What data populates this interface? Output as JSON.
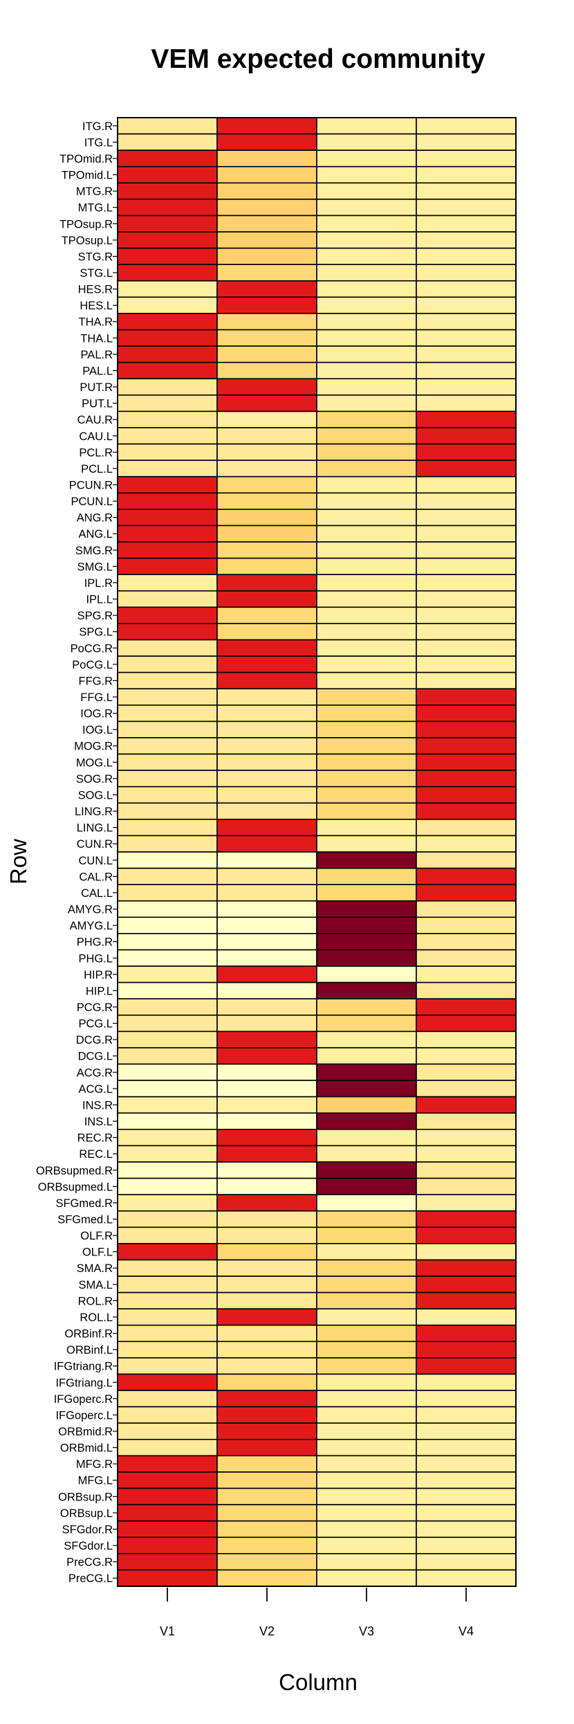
{
  "chart_data": {
    "type": "heatmap",
    "title": "VEM expected community",
    "xlabel": "Column",
    "ylabel": "Row",
    "columns": [
      "V1",
      "V2",
      "V3",
      "V4"
    ],
    "rows": [
      "ITG.R",
      "ITG.L",
      "TPOmid.R",
      "TPOmid.L",
      "MTG.R",
      "MTG.L",
      "TPOsup.R",
      "TPOsup.L",
      "STG.R",
      "STG.L",
      "HES.R",
      "HES.L",
      "THA.R",
      "THA.L",
      "PAL.R",
      "PAL.L",
      "PUT.R",
      "PUT.L",
      "CAU.R",
      "CAU.L",
      "PCL.R",
      "PCL.L",
      "PCUN.R",
      "PCUN.L",
      "ANG.R",
      "ANG.L",
      "SMG.R",
      "SMG.L",
      "IPL.R",
      "IPL.L",
      "SPG.R",
      "SPG.L",
      "PoCG.R",
      "PoCG.L",
      "FFG.R",
      "FFG.L",
      "IOG.R",
      "IOG.L",
      "MOG.R",
      "MOG.L",
      "SOG.R",
      "SOG.L",
      "LING.R",
      "LING.L",
      "CUN.R",
      "CUN.L",
      "CAL.R",
      "CAL.L",
      "AMYG.R",
      "AMYG.L",
      "PHG.R",
      "PHG.L",
      "HIP.R",
      "HIP.L",
      "PCG.R",
      "PCG.L",
      "DCG.R",
      "DCG.L",
      "ACG.R",
      "ACG.L",
      "INS.R",
      "INS.L",
      "REC.R",
      "REC.L",
      "ORBsupmed.R",
      "ORBsupmed.L",
      "SFGmed.R",
      "SFGmed.L",
      "OLF.R",
      "OLF.L",
      "SMA.R",
      "SMA.L",
      "ROL.R",
      "ROL.L",
      "ORBinf.R",
      "ORBinf.L",
      "IFGtriang.R",
      "IFGtriang.L",
      "IFGoperc.R",
      "IFGoperc.L",
      "ORBmid.R",
      "ORBmid.L",
      "MFG.R",
      "MFG.L",
      "ORBsup.R",
      "ORBsup.L",
      "SFGdor.R",
      "SFGdor.L",
      "PreCG.R",
      "PreCG.L"
    ],
    "values": [
      [
        3,
        8,
        2,
        2
      ],
      [
        3,
        8,
        2,
        2
      ],
      [
        8,
        5,
        2,
        2
      ],
      [
        8,
        5,
        2,
        2
      ],
      [
        8,
        5,
        2,
        2
      ],
      [
        8,
        5,
        2,
        2
      ],
      [
        8,
        5,
        2,
        2
      ],
      [
        8,
        5,
        2,
        2
      ],
      [
        8,
        5,
        2,
        2
      ],
      [
        8,
        4,
        2,
        2
      ],
      [
        2,
        8,
        2,
        2
      ],
      [
        2,
        8,
        2,
        2
      ],
      [
        8,
        4,
        2,
        2
      ],
      [
        8,
        4,
        2,
        2
      ],
      [
        8,
        4,
        2,
        2
      ],
      [
        8,
        4,
        2,
        2
      ],
      [
        3,
        8,
        2,
        2
      ],
      [
        3,
        8,
        2,
        2
      ],
      [
        3,
        2,
        4,
        8
      ],
      [
        3,
        3,
        4,
        8
      ],
      [
        3,
        3,
        4,
        8
      ],
      [
        3,
        3,
        4,
        8
      ],
      [
        8,
        4,
        2,
        2
      ],
      [
        8,
        4,
        2,
        2
      ],
      [
        8,
        5,
        2,
        2
      ],
      [
        8,
        5,
        2,
        2
      ],
      [
        8,
        4,
        2,
        2
      ],
      [
        8,
        4,
        2,
        2
      ],
      [
        2,
        8,
        2,
        2
      ],
      [
        3,
        8,
        2,
        2
      ],
      [
        8,
        4,
        2,
        2
      ],
      [
        8,
        4,
        2,
        2
      ],
      [
        3,
        8,
        2,
        2
      ],
      [
        3,
        8,
        2,
        2
      ],
      [
        3,
        8,
        2,
        2
      ],
      [
        3,
        3,
        4,
        8
      ],
      [
        3,
        3,
        4,
        8
      ],
      [
        3,
        3,
        4,
        8
      ],
      [
        3,
        3,
        4,
        8
      ],
      [
        3,
        3,
        4,
        8
      ],
      [
        3,
        3,
        4,
        8
      ],
      [
        3,
        3,
        4,
        8
      ],
      [
        3,
        3,
        4,
        8
      ],
      [
        3,
        8,
        2,
        3
      ],
      [
        3,
        8,
        2,
        2
      ],
      [
        1,
        1,
        10,
        3
      ],
      [
        3,
        3,
        4,
        8
      ],
      [
        3,
        3,
        4,
        8
      ],
      [
        1,
        1,
        10,
        3
      ],
      [
        1,
        1,
        10,
        3
      ],
      [
        1,
        1,
        10,
        3
      ],
      [
        1,
        1,
        10,
        3
      ],
      [
        2,
        8,
        1,
        2
      ],
      [
        1,
        1,
        10,
        3
      ],
      [
        3,
        3,
        4,
        8
      ],
      [
        3,
        3,
        4,
        8
      ],
      [
        3,
        8,
        2,
        2
      ],
      [
        3,
        8,
        2,
        2
      ],
      [
        1,
        1,
        10,
        3
      ],
      [
        1,
        1,
        10,
        3
      ],
      [
        2,
        2,
        5,
        8
      ],
      [
        1,
        1,
        10,
        3
      ],
      [
        2,
        8,
        2,
        2
      ],
      [
        2,
        8,
        2,
        2
      ],
      [
        1,
        1,
        10,
        3
      ],
      [
        1,
        1,
        10,
        3
      ],
      [
        2,
        8,
        1,
        2
      ],
      [
        3,
        3,
        4,
        8
      ],
      [
        3,
        3,
        4,
        8
      ],
      [
        8,
        4,
        2,
        2
      ],
      [
        3,
        3,
        4,
        8
      ],
      [
        3,
        3,
        4,
        8
      ],
      [
        3,
        3,
        4,
        8
      ],
      [
        3,
        8,
        2,
        2
      ],
      [
        3,
        3,
        4,
        8
      ],
      [
        3,
        3,
        4,
        8
      ],
      [
        3,
        3,
        4,
        8
      ],
      [
        8,
        4,
        2,
        2
      ],
      [
        3,
        8,
        2,
        2
      ],
      [
        3,
        8,
        2,
        2
      ],
      [
        3,
        8,
        2,
        2
      ],
      [
        3,
        8,
        2,
        2
      ],
      [
        8,
        4,
        2,
        2
      ],
      [
        8,
        4,
        2,
        2
      ],
      [
        8,
        4,
        2,
        2
      ],
      [
        8,
        4,
        2,
        2
      ],
      [
        8,
        4,
        2,
        2
      ],
      [
        8,
        4,
        2,
        2
      ],
      [
        8,
        4,
        2,
        2
      ],
      [
        8,
        4,
        2,
        2
      ]
    ],
    "palette": {
      "1": "#ffffc8",
      "2": "#ffefa0",
      "3": "#ffe898",
      "4": "#fed976",
      "5": "#fed06e",
      "8": "#e31a1c",
      "10": "#800026"
    }
  }
}
